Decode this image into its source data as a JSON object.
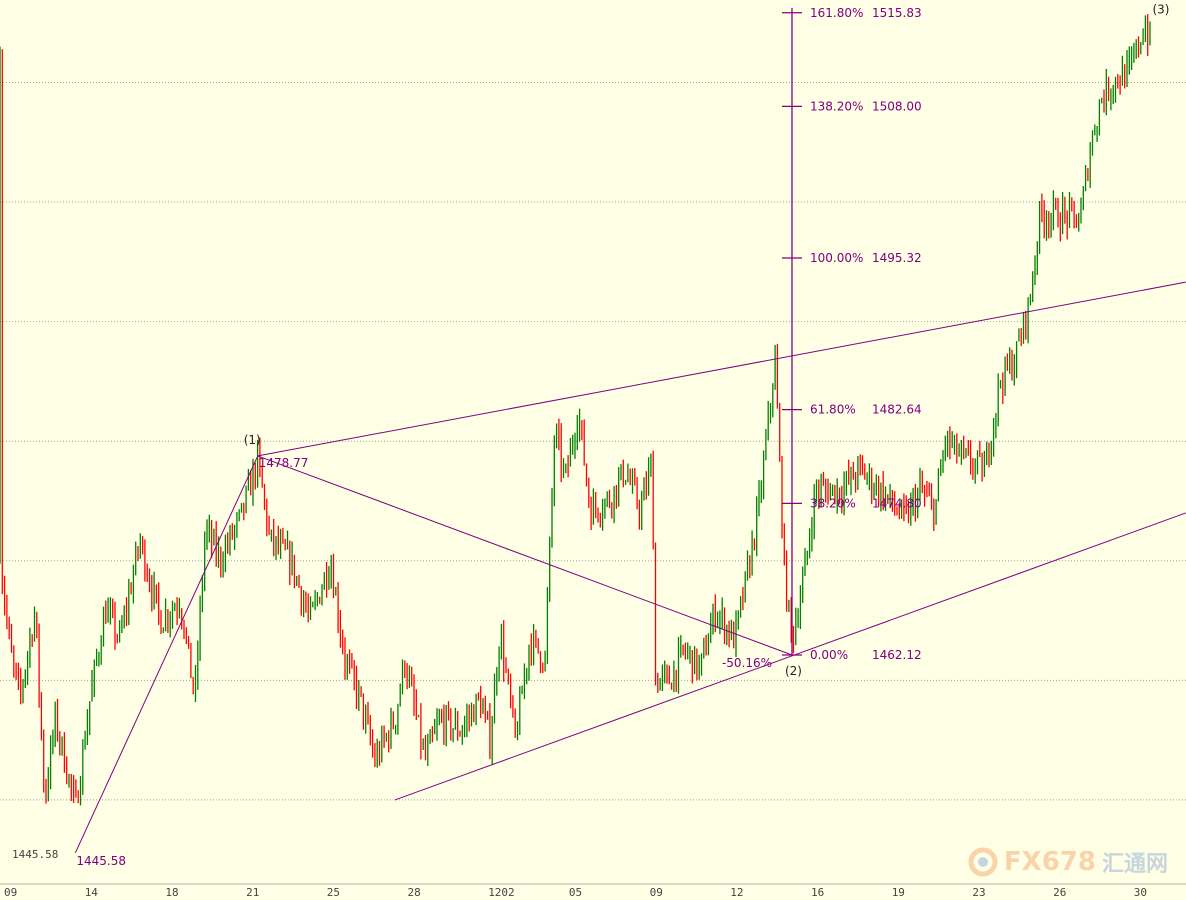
{
  "chart_data": {
    "type": "candlestick",
    "x_tick_labels": [
      "09",
      "14",
      "18",
      "21",
      "25",
      "28",
      "1202",
      "05",
      "09",
      "12",
      "16",
      "19",
      "23",
      "26",
      "30"
    ],
    "y_grid_prices": [
      1450,
      1460,
      1470,
      1480,
      1490,
      1500,
      1510
    ],
    "grid": true,
    "price_path": [
      [
        -0.12,
        1470.1
      ],
      [
        0,
        1462.5
      ],
      [
        0.12,
        1458.4
      ],
      [
        0.31,
        1465.9
      ],
      [
        0.43,
        1450.0
      ],
      [
        0.56,
        1456.7
      ],
      [
        0.68,
        1453.3
      ],
      [
        0.81,
        1449.2
      ],
      [
        0.99,
        1458.4
      ],
      [
        1.18,
        1465.9
      ],
      [
        1.36,
        1463.4
      ],
      [
        1.61,
        1471.7
      ],
      [
        1.86,
        1465.0
      ],
      [
        2.11,
        1466.7
      ],
      [
        2.29,
        1458.4
      ],
      [
        2.42,
        1472.6
      ],
      [
        2.6,
        1470.1
      ],
      [
        2.85,
        1473.4
      ],
      [
        3.07,
        1478.4
      ],
      [
        3.22,
        1471.7
      ],
      [
        3.47,
        1470.1
      ],
      [
        3.72,
        1465.0
      ],
      [
        3.97,
        1470.1
      ],
      [
        4.15,
        1461.7
      ],
      [
        4.34,
        1458.4
      ],
      [
        4.52,
        1453.3
      ],
      [
        4.77,
        1456.7
      ],
      [
        4.89,
        1461.7
      ],
      [
        5.14,
        1453.3
      ],
      [
        5.33,
        1456.7
      ],
      [
        5.58,
        1455.8
      ],
      [
        5.82,
        1458.4
      ],
      [
        5.95,
        1455.0
      ],
      [
        6.07,
        1464.2
      ],
      [
        6.26,
        1455.0
      ],
      [
        6.44,
        1463.4
      ],
      [
        6.63,
        1461.7
      ],
      [
        6.75,
        1480.9
      ],
      [
        6.88,
        1476.7
      ],
      [
        7.04,
        1482.6
      ],
      [
        7.19,
        1474.2
      ],
      [
        7.43,
        1475.1
      ],
      [
        7.62,
        1477.6
      ],
      [
        7.81,
        1474.2
      ],
      [
        7.96,
        1478.4
      ],
      [
        7.99,
        1460.0
      ],
      [
        8.18,
        1460.0
      ],
      [
        8.36,
        1462.5
      ],
      [
        8.55,
        1460.9
      ],
      [
        8.74,
        1465.9
      ],
      [
        8.98,
        1463.4
      ],
      [
        9.17,
        1470.1
      ],
      [
        9.29,
        1475.1
      ],
      [
        9.48,
        1486.8
      ],
      [
        9.6,
        1468.4
      ],
      [
        9.69,
        1463.4
      ],
      [
        9.85,
        1469.2
      ],
      [
        9.98,
        1475.9
      ],
      [
        10.29,
        1475.9
      ],
      [
        10.53,
        1477.6
      ],
      [
        10.78,
        1475.9
      ],
      [
        11.09,
        1473.4
      ],
      [
        11.28,
        1475.9
      ],
      [
        11.46,
        1474.2
      ],
      [
        11.59,
        1480.1
      ],
      [
        11.83,
        1478.4
      ],
      [
        12.08,
        1477.6
      ],
      [
        12.27,
        1485.1
      ],
      [
        12.45,
        1486.8
      ],
      [
        12.64,
        1491.8
      ],
      [
        12.76,
        1498.9
      ],
      [
        13.01,
        1498.9
      ],
      [
        13.26,
        1498.5
      ],
      [
        13.38,
        1504.3
      ],
      [
        13.51,
        1508.5
      ],
      [
        13.69,
        1510.2
      ],
      [
        13.88,
        1511.0
      ],
      [
        14.06,
        1514.8
      ],
      [
        14.15,
        1513.1
      ]
    ],
    "colors": {
      "up": "#008000",
      "down": "#ff0000",
      "drawing": "#800080",
      "grid": "#a0a0a0",
      "background": "#ffffe6"
    },
    "fibonacci": {
      "base_price": 1462.12,
      "top_price": 1495.32,
      "levels": [
        {
          "pct": "161.80%",
          "price": "1515.83",
          "value": 1515.83
        },
        {
          "pct": "138.20%",
          "price": "1508.00",
          "value": 1508.0
        },
        {
          "pct": "100.00%",
          "price": "1495.32",
          "value": 1495.32
        },
        {
          "pct": "61.80%",
          "price": "1482.64",
          "value": 1482.64
        },
        {
          "pct": "38.20%",
          "price": "1474.80",
          "value": 1474.8
        },
        {
          "pct": "0.00%",
          "price": "1462.12",
          "value": 1462.12
        }
      ]
    },
    "waves": [
      {
        "label": "(1)",
        "x": 3.07,
        "price": 1478.77,
        "price_label": "1478.77"
      },
      {
        "label": "(2)",
        "x": 9.69,
        "price": 1462.12
      },
      {
        "label": "(3)",
        "x": 14.12,
        "price": 1516.0
      }
    ],
    "start_point": {
      "x": 0.81,
      "price": 1445.58,
      "price_label": "1445.58",
      "axis_label": "1445.58"
    },
    "retracement_label": "-50.16%",
    "channel": {
      "upper": [
        [
          3.07,
          1478.77
        ],
        [
          14.57,
          1493.3
        ]
      ],
      "lower": [
        [
          4.77,
          1450.0
        ],
        [
          14.57,
          1474.0
        ]
      ]
    }
  },
  "watermark": {
    "brand": "FX678",
    "cn": "汇通网"
  }
}
